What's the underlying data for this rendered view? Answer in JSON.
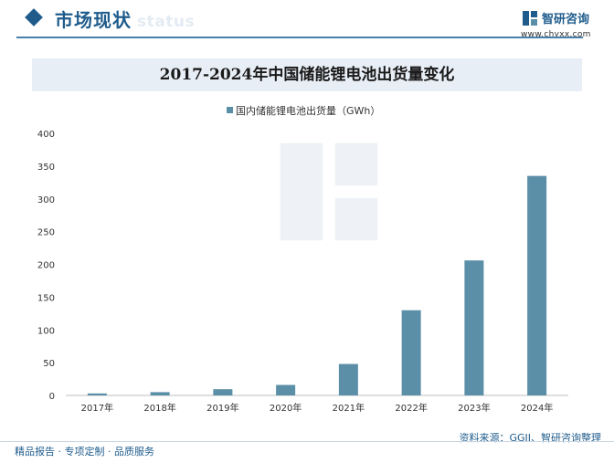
{
  "header": {
    "section_title": "市场现状",
    "section_ghost": "status",
    "brand_name": "智研咨询",
    "brand_url": "www.chyxx.com"
  },
  "colors": {
    "brand": "#1f5c8c",
    "bar": "#5b8fa8"
  },
  "chart_data": {
    "type": "bar",
    "title": "2017-2024年中国储能锂电池出货量变化",
    "categories": [
      "2017年",
      "2018年",
      "2019年",
      "2020年",
      "2021年",
      "2022年",
      "2023年",
      "2024年"
    ],
    "series": [
      {
        "name": "国内储能锂电池出货量（GWh）",
        "values": [
          3,
          5,
          9.5,
          16,
          48,
          130,
          206,
          335
        ]
      }
    ],
    "yticks": [
      0,
      50,
      100,
      150,
      200,
      250,
      300,
      350,
      400
    ],
    "ylim": [
      0,
      400
    ],
    "xlabel": "",
    "ylabel": "",
    "grid": false,
    "legend": "top-center"
  },
  "footer": {
    "source": "资料来源：GGII、智研咨询整理",
    "tagline": "精品报告 · 专项定制 · 品质服务"
  }
}
